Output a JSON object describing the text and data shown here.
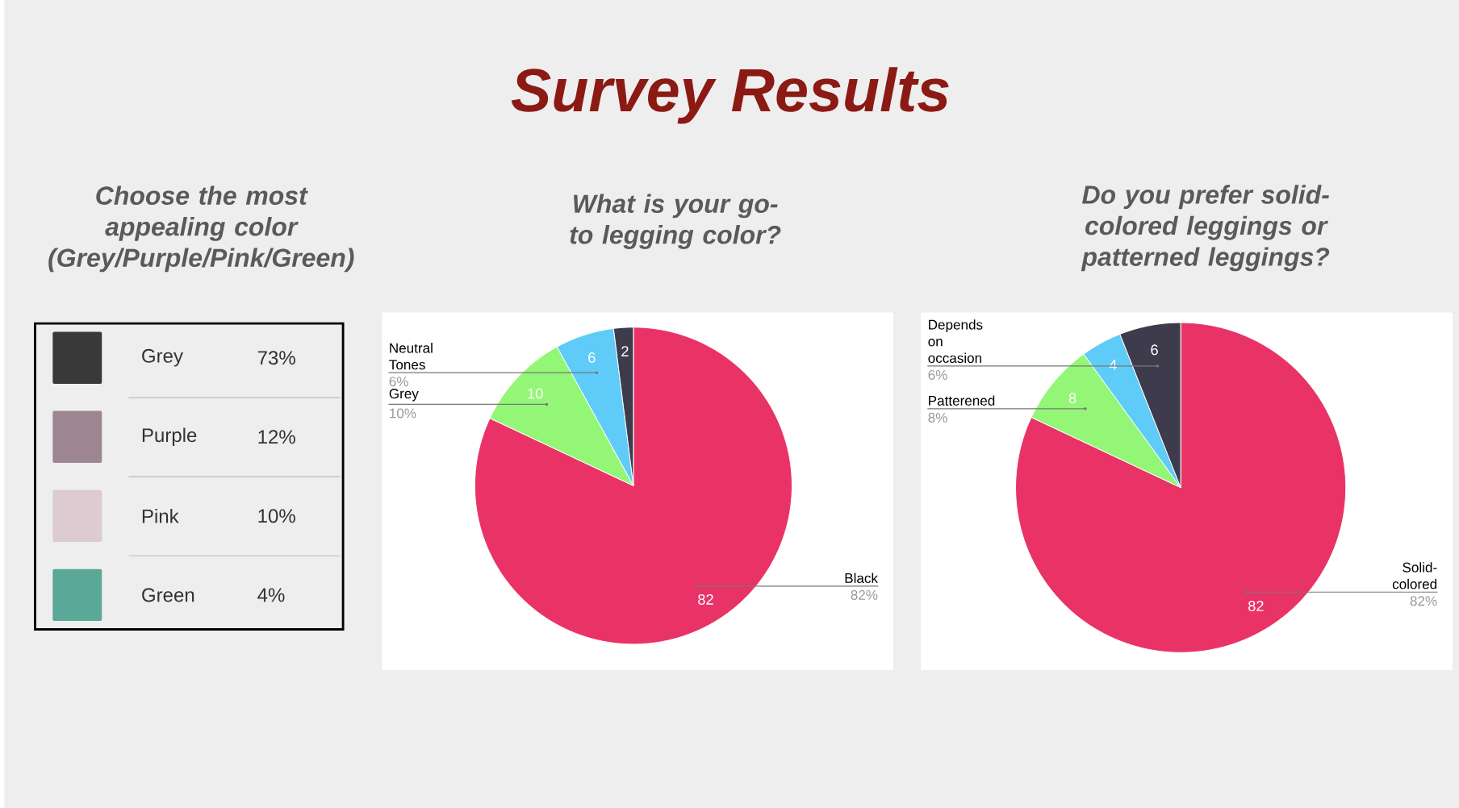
{
  "chart_data": [
    {
      "type": "other",
      "title": "Survey Results"
    },
    {
      "type": "other",
      "title": "Choose the most appealing color (Grey/Purple/Pink/Green)",
      "categories": [
        "Grey",
        "Purple",
        "Pink",
        "Green"
      ],
      "value_labels": [
        "73%",
        "12%",
        "10%",
        "4%"
      ],
      "colors": [
        "#3a3939",
        "#9d8691",
        "#dccbd0",
        "#5aa898"
      ]
    },
    {
      "type": "pie",
      "title": "What is your go-to legging color?",
      "categories": [
        "Black",
        "Grey",
        "Neutral Tones",
        null
      ],
      "values": [
        82,
        10,
        6,
        2
      ],
      "colors": [
        "#e93367",
        "#94f677",
        "#5fcbf8",
        "#3e3b4d"
      ],
      "data_labels": true,
      "annotations": [
        "82%",
        "10%",
        "6%"
      ]
    },
    {
      "type": "pie",
      "title": "Do you prefer solid-colored leggings or patterned leggings?",
      "categories": [
        "Solid-colored",
        "Patterened",
        null,
        "Depends on occasion"
      ],
      "values": [
        82,
        8,
        4,
        6
      ],
      "colors": [
        "#e93367",
        "#94f677",
        "#5fcbf8",
        "#3e3b4d"
      ],
      "data_labels": true,
      "annotations": [
        "82%",
        "8%",
        "6%"
      ]
    }
  ]
}
